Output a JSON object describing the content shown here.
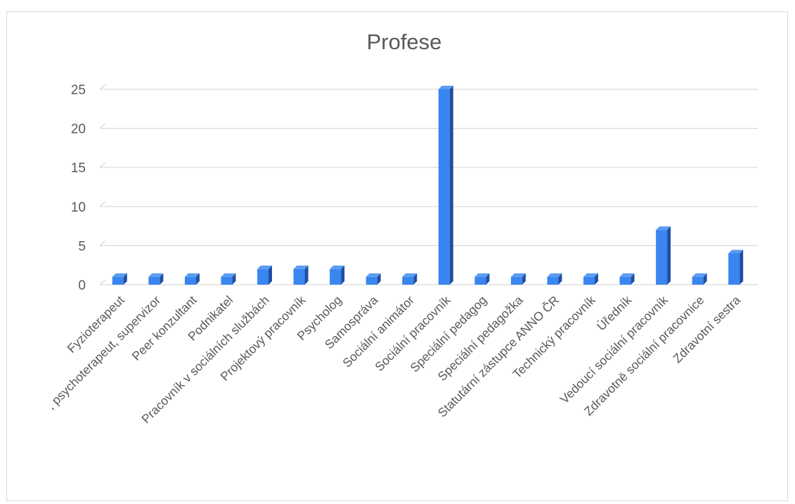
{
  "chart_data": {
    "type": "bar",
    "title": "Profese",
    "xlabel": "",
    "ylabel": "",
    "ylim": [
      0,
      25
    ],
    "yticks": [
      0,
      5,
      10,
      15,
      20,
      25
    ],
    "grid": true,
    "legend": "none",
    "bar_color": "#3a86f0",
    "bar_side_color": "#1f4fa3",
    "bar_top_color": "#5a9bf3",
    "categories": [
      "Fyzioterapeut",
      ", psychoterapeut, supervizor",
      "Peer konzultant",
      "Podnikatel",
      "Pracovník v sociálních službách",
      "Projektový pracovník",
      "Psycholog",
      "Samospráva",
      "Sociální animátor",
      "Sociální pracovník",
      "Speciální pedagog",
      "Speciální pedagožka",
      "Statutární zástupce ANNO ČR",
      "Technický pracovník",
      "Úředník",
      "Vedoucí sociální pracovník",
      "Zdravotně sociální pracovnice",
      "Zdravotní sestra"
    ],
    "values": [
      1,
      1,
      1,
      1,
      2,
      2,
      2,
      1,
      1,
      25,
      1,
      1,
      1,
      1,
      1,
      7,
      1,
      4
    ]
  }
}
